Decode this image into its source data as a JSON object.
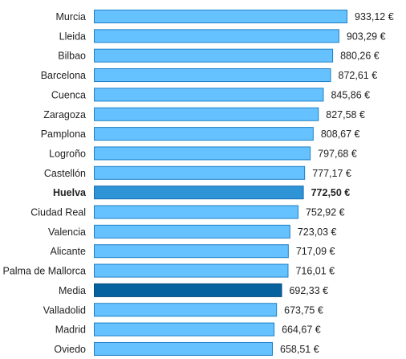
{
  "chart_data": {
    "type": "bar",
    "orientation": "horizontal",
    "categories": [
      "Murcia",
      "Lleida",
      "Bilbao",
      "Barcelona",
      "Cuenca",
      "Zaragoza",
      "Pamplona",
      "Logroño",
      "Castellón",
      "Huelva",
      "Ciudad Real",
      "Valencia",
      "Alicante",
      "Palma de Mallorca",
      "Media",
      "Valladolid",
      "Madrid",
      "Oviedo"
    ],
    "values": [
      933.12,
      903.29,
      880.26,
      872.61,
      845.86,
      827.58,
      808.67,
      797.68,
      777.17,
      772.5,
      752.92,
      723.03,
      717.09,
      716.01,
      692.33,
      673.75,
      664.67,
      658.51
    ],
    "value_labels": [
      "933,12 €",
      "903,29 €",
      "880,26 €",
      "872,61 €",
      "845,86 €",
      "827,58 €",
      "808,67 €",
      "797,68 €",
      "777,17 €",
      "772,50 €",
      "752,92 €",
      "723,03 €",
      "717,09 €",
      "716,01 €",
      "692,33 €",
      "673,75 €",
      "664,67 €",
      "658,51 €"
    ],
    "highlighted": [
      "Huelva",
      "Media"
    ],
    "title": "",
    "xlabel": "",
    "ylabel": "",
    "xlim": [
      0,
      933.12
    ],
    "grid": false,
    "legend": "none",
    "colors": {
      "default_bar": "#66c2ff",
      "default_stroke": "#1f7fc4",
      "huelva_bar": "#2f94d6",
      "huelva_stroke": "#1a6fae",
      "media_bar": "#06629e",
      "media_stroke": "#034a78",
      "text": "#222222"
    }
  }
}
